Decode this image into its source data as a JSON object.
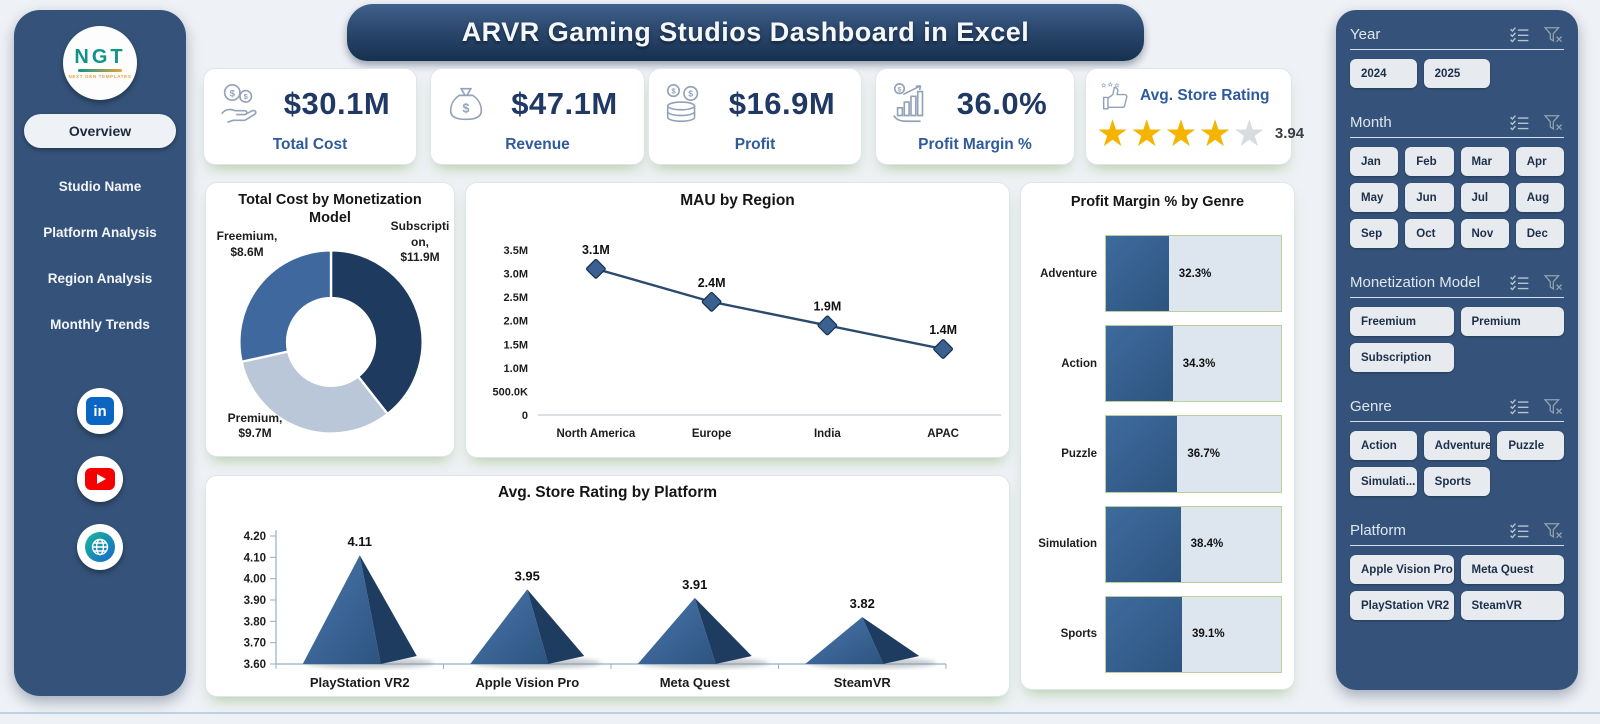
{
  "header": {
    "title": "ARVR Gaming Studios Dashboard in Excel"
  },
  "sidebar": {
    "logo": {
      "text": "NGT",
      "subtext": "NEXT GEN TEMPLATES"
    },
    "active_item": "Overview",
    "items": [
      "Studio Name",
      "Platform Analysis",
      "Region Analysis",
      "Monthly Trends"
    ],
    "social": [
      "linkedin",
      "youtube",
      "website"
    ]
  },
  "kpis": [
    {
      "icon": "coins-in-hand-icon",
      "value": "$30.1M",
      "label": "Total Cost"
    },
    {
      "icon": "money-bag-icon",
      "value": "$47.1M",
      "label": "Revenue"
    },
    {
      "icon": "profit-coins-icon",
      "value": "$16.9M",
      "label": "Profit"
    },
    {
      "icon": "growth-chart-icon",
      "value": "36.0%",
      "label": "Profit Margin %"
    }
  ],
  "rating_card": {
    "icon": "thumb-up-stars-icon",
    "label": "Avg. Store Rating",
    "value": "3.94",
    "stars_filled": 4,
    "stars_total": 5,
    "star_color": "#f4b400",
    "star_off_color": "#d8dce1"
  },
  "chart_data": [
    {
      "type": "donut",
      "title": "Total Cost by Monetization Model",
      "slices": [
        {
          "name": "Subscription",
          "value": 11.9,
          "label": "Subscription, $11.9M",
          "color": "#1e3a5f"
        },
        {
          "name": "Premium",
          "value": 9.7,
          "label": "Premium, $9.7M",
          "color": "#b9c7d8"
        },
        {
          "name": "Freemium",
          "value": 8.6,
          "label": "Freemium, $8.6M",
          "color": "#3f699e"
        }
      ],
      "value_unit": "$M",
      "legend_position": "outside-labels"
    },
    {
      "type": "line",
      "title": "MAU by Region",
      "categories": [
        "North America",
        "Europe",
        "India",
        "APAC"
      ],
      "values": [
        3.1,
        2.4,
        1.9,
        1.4
      ],
      "point_labels": [
        "3.1M",
        "2.4M",
        "1.9M",
        "1.4M"
      ],
      "yticks": [
        "0",
        "500.0K",
        "1.0M",
        "1.5M",
        "2.0M",
        "2.5M",
        "3.0M",
        "3.5M"
      ],
      "ylim": [
        0,
        3.5
      ],
      "line_color": "#2c4a70",
      "marker": "diamond",
      "grid": false
    },
    {
      "type": "bar",
      "title": "Profit Margin % by Genre",
      "orientation": "horizontal",
      "categories": [
        "Adventure",
        "Action",
        "Puzzle",
        "Simulation",
        "Sports"
      ],
      "values": [
        32.3,
        34.3,
        36.7,
        38.4,
        39.1
      ],
      "value_labels": [
        "32.3%",
        "34.3%",
        "36.7%",
        "38.4%",
        "39.1%"
      ],
      "xlim": [
        0,
        90
      ],
      "bar_color": "#33608f",
      "track_color": "#dde5ee"
    },
    {
      "type": "pyramid",
      "title": "Avg. Store Rating by Platform",
      "categories": [
        "PlayStation VR2",
        "Apple Vision Pro",
        "Meta Quest",
        "SteamVR"
      ],
      "values": [
        4.11,
        3.95,
        3.91,
        3.82
      ],
      "point_labels": [
        "4.11",
        "3.95",
        "3.91",
        "3.82"
      ],
      "yticks": [
        "3.60",
        "3.70",
        "3.80",
        "3.90",
        "4.00",
        "4.10",
        "4.20"
      ],
      "ylim": [
        3.6,
        4.2
      ],
      "face_light": "#4a77ad",
      "face_dark": "#1d3c5f"
    }
  ],
  "slicers": [
    {
      "title": "Year",
      "cols": 3,
      "options": [
        "2024",
        "2025"
      ]
    },
    {
      "title": "Month",
      "cols": 4,
      "options": [
        "Jan",
        "Feb",
        "Mar",
        "Apr",
        "May",
        "Jun",
        "Jul",
        "Aug",
        "Sep",
        "Oct",
        "Nov",
        "Dec"
      ]
    },
    {
      "title": "Monetization Model",
      "cols": 2,
      "options": [
        "Freemium",
        "Premium",
        "Subscription"
      ]
    },
    {
      "title": "Genre",
      "cols": 3,
      "options": [
        "Action",
        "Adventure",
        "Puzzle",
        "Simulati...",
        "Sports"
      ]
    },
    {
      "title": "Platform",
      "cols": 2,
      "options": [
        "Apple Vision Pro",
        "Meta Quest",
        "PlayStation VR2",
        "SteamVR"
      ]
    }
  ],
  "colors": {
    "panel_navy": "#35537a",
    "page_bg": "#eef1f5",
    "kpi_value": "#1f3864",
    "kpi_label": "#2f5b9d",
    "accent_green_shadow": "#c9dfc2"
  }
}
